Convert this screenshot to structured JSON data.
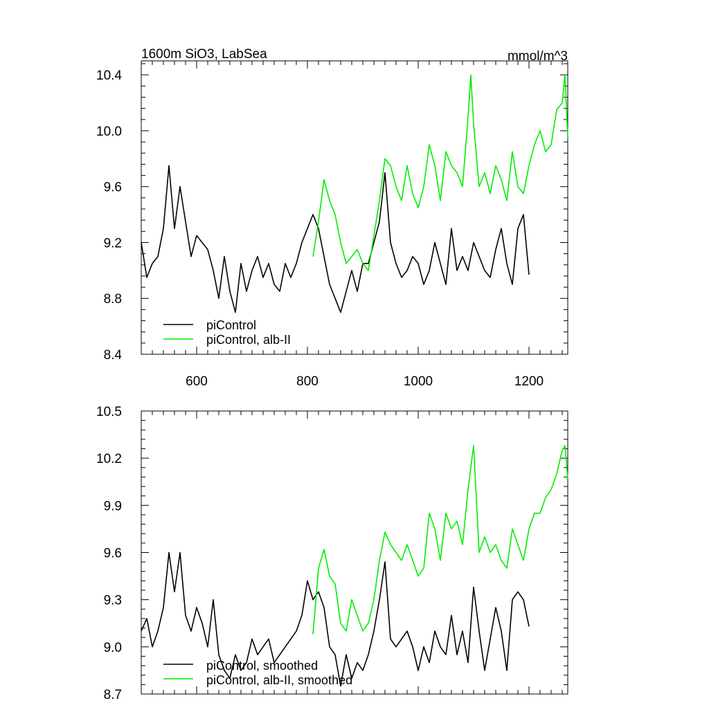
{
  "chart_data": [
    {
      "type": "line",
      "title": "1600m SiO3, LabSea",
      "units": "mmol/m^3",
      "xlim": [
        500,
        1270
      ],
      "ylim": [
        8.4,
        10.5
      ],
      "xticks": [
        600,
        800,
        1000,
        1200
      ],
      "xtick_labels": [
        "600",
        "800",
        "1000",
        "1200"
      ],
      "yticks": [
        8.4,
        8.8,
        9.2,
        9.6,
        10.0,
        10.4
      ],
      "ytick_labels": [
        "8.4",
        "8.8",
        "9.2",
        "9.6",
        "10.0",
        "10.4"
      ],
      "legend_position": "bottom-left",
      "series": [
        {
          "name": "piControl",
          "color": "#000000",
          "x": [
            500,
            510,
            520,
            530,
            540,
            550,
            560,
            570,
            580,
            590,
            600,
            610,
            620,
            630,
            640,
            650,
            660,
            670,
            680,
            690,
            700,
            710,
            720,
            730,
            740,
            750,
            760,
            770,
            780,
            790,
            800,
            810,
            820,
            830,
            840,
            850,
            860,
            870,
            880,
            890,
            900,
            910,
            920,
            930,
            940,
            950,
            960,
            970,
            980,
            990,
            1000,
            1010,
            1020,
            1030,
            1040,
            1050,
            1060,
            1070,
            1080,
            1090,
            1100,
            1110,
            1120,
            1130,
            1140,
            1150,
            1160,
            1170,
            1180,
            1190,
            1200
          ],
          "values": [
            9.2,
            8.95,
            9.05,
            9.1,
            9.3,
            9.75,
            9.3,
            9.6,
            9.35,
            9.1,
            9.25,
            9.2,
            9.15,
            9.0,
            8.8,
            9.1,
            8.85,
            8.7,
            9.05,
            8.85,
            9.0,
            9.1,
            8.95,
            9.05,
            8.9,
            8.85,
            9.05,
            8.95,
            9.05,
            9.2,
            9.3,
            9.4,
            9.3,
            9.1,
            8.9,
            8.8,
            8.7,
            8.85,
            9.0,
            8.85,
            9.05,
            9.05,
            9.2,
            9.35,
            9.7,
            9.2,
            9.05,
            8.95,
            9.0,
            9.1,
            9.05,
            8.9,
            9.0,
            9.2,
            9.05,
            8.9,
            9.3,
            9.0,
            9.1,
            9.0,
            9.2,
            9.1,
            9.0,
            8.95,
            9.15,
            9.3,
            9.05,
            8.9,
            9.3,
            9.4,
            8.97
          ]
        },
        {
          "name": "piControl, alb-II",
          "color": "#00ee00",
          "x": [
            810,
            820,
            830,
            840,
            850,
            860,
            870,
            880,
            890,
            900,
            910,
            920,
            930,
            940,
            950,
            960,
            970,
            980,
            990,
            1000,
            1010,
            1020,
            1030,
            1040,
            1050,
            1060,
            1070,
            1080,
            1090,
            1095,
            1100,
            1110,
            1120,
            1130,
            1140,
            1150,
            1160,
            1170,
            1180,
            1190,
            1200,
            1210,
            1220,
            1230,
            1240,
            1250,
            1260,
            1265,
            1270
          ],
          "values": [
            9.1,
            9.35,
            9.65,
            9.5,
            9.4,
            9.2,
            9.05,
            9.1,
            9.15,
            9.05,
            9.0,
            9.25,
            9.5,
            9.8,
            9.75,
            9.6,
            9.5,
            9.75,
            9.55,
            9.45,
            9.6,
            9.9,
            9.75,
            9.5,
            9.85,
            9.75,
            9.7,
            9.6,
            10.1,
            10.4,
            10.05,
            9.6,
            9.7,
            9.55,
            9.75,
            9.65,
            9.5,
            9.85,
            9.6,
            9.55,
            9.75,
            9.9,
            10.0,
            9.85,
            9.9,
            10.15,
            10.2,
            10.4,
            9.95
          ]
        }
      ]
    },
    {
      "type": "line",
      "xlim": [
        500,
        1270
      ],
      "ylim": [
        8.7,
        10.5
      ],
      "xticks": [
        600,
        800,
        1000,
        1200
      ],
      "yticks": [
        8.7,
        9.0,
        9.3,
        9.6,
        9.9,
        10.2,
        10.5
      ],
      "ytick_labels": [
        "8.7",
        "9.0",
        "9.3",
        "9.6",
        "9.9",
        "10.2",
        "10.5"
      ],
      "legend_position": "bottom-left",
      "series": [
        {
          "name": "piControl, smoothed",
          "color": "#000000",
          "x": [
            500,
            510,
            520,
            530,
            540,
            550,
            560,
            570,
            580,
            590,
            600,
            610,
            620,
            630,
            640,
            650,
            660,
            670,
            680,
            690,
            700,
            710,
            720,
            730,
            740,
            750,
            760,
            770,
            780,
            790,
            800,
            810,
            820,
            830,
            840,
            850,
            860,
            870,
            880,
            890,
            900,
            910,
            920,
            930,
            940,
            950,
            960,
            970,
            980,
            990,
            1000,
            1010,
            1020,
            1030,
            1040,
            1050,
            1060,
            1070,
            1080,
            1090,
            1100,
            1110,
            1120,
            1130,
            1140,
            1150,
            1160,
            1170,
            1180,
            1190,
            1200
          ],
          "values": [
            9.1,
            9.18,
            9.0,
            9.1,
            9.25,
            9.6,
            9.35,
            9.6,
            9.2,
            9.1,
            9.25,
            9.15,
            9.0,
            9.3,
            8.95,
            8.85,
            8.8,
            8.95,
            8.85,
            8.9,
            9.05,
            8.95,
            9.0,
            9.05,
            8.9,
            8.95,
            9.0,
            9.05,
            9.1,
            9.2,
            9.42,
            9.3,
            9.35,
            9.25,
            9.0,
            8.95,
            8.75,
            8.95,
            8.8,
            8.9,
            8.85,
            8.95,
            9.1,
            9.3,
            9.54,
            9.05,
            9.0,
            9.05,
            9.1,
            9.0,
            8.85,
            9.0,
            8.9,
            9.1,
            9.0,
            8.95,
            9.2,
            8.95,
            9.1,
            8.9,
            9.38,
            9.1,
            8.85,
            9.05,
            9.25,
            9.1,
            8.85,
            9.3,
            9.35,
            9.3,
            9.13
          ]
        },
        {
          "name": "piControl, alb-II, smoothed",
          "color": "#00ee00",
          "x": [
            810,
            820,
            830,
            840,
            850,
            860,
            870,
            880,
            890,
            900,
            910,
            920,
            930,
            940,
            950,
            960,
            970,
            980,
            990,
            1000,
            1010,
            1020,
            1030,
            1040,
            1050,
            1060,
            1070,
            1080,
            1090,
            1100,
            1110,
            1120,
            1130,
            1140,
            1150,
            1160,
            1170,
            1180,
            1190,
            1200,
            1210,
            1220,
            1230,
            1240,
            1250,
            1260,
            1265,
            1270
          ],
          "values": [
            9.08,
            9.5,
            9.62,
            9.45,
            9.4,
            9.15,
            9.1,
            9.3,
            9.2,
            9.1,
            9.15,
            9.3,
            9.55,
            9.73,
            9.65,
            9.6,
            9.55,
            9.65,
            9.55,
            9.45,
            9.5,
            9.85,
            9.75,
            9.55,
            9.85,
            9.75,
            9.8,
            9.65,
            10.0,
            10.28,
            9.6,
            9.7,
            9.6,
            9.65,
            9.55,
            9.5,
            9.75,
            9.65,
            9.55,
            9.75,
            9.85,
            9.85,
            9.95,
            10.0,
            10.1,
            10.25,
            10.28,
            10.07
          ]
        }
      ]
    }
  ]
}
